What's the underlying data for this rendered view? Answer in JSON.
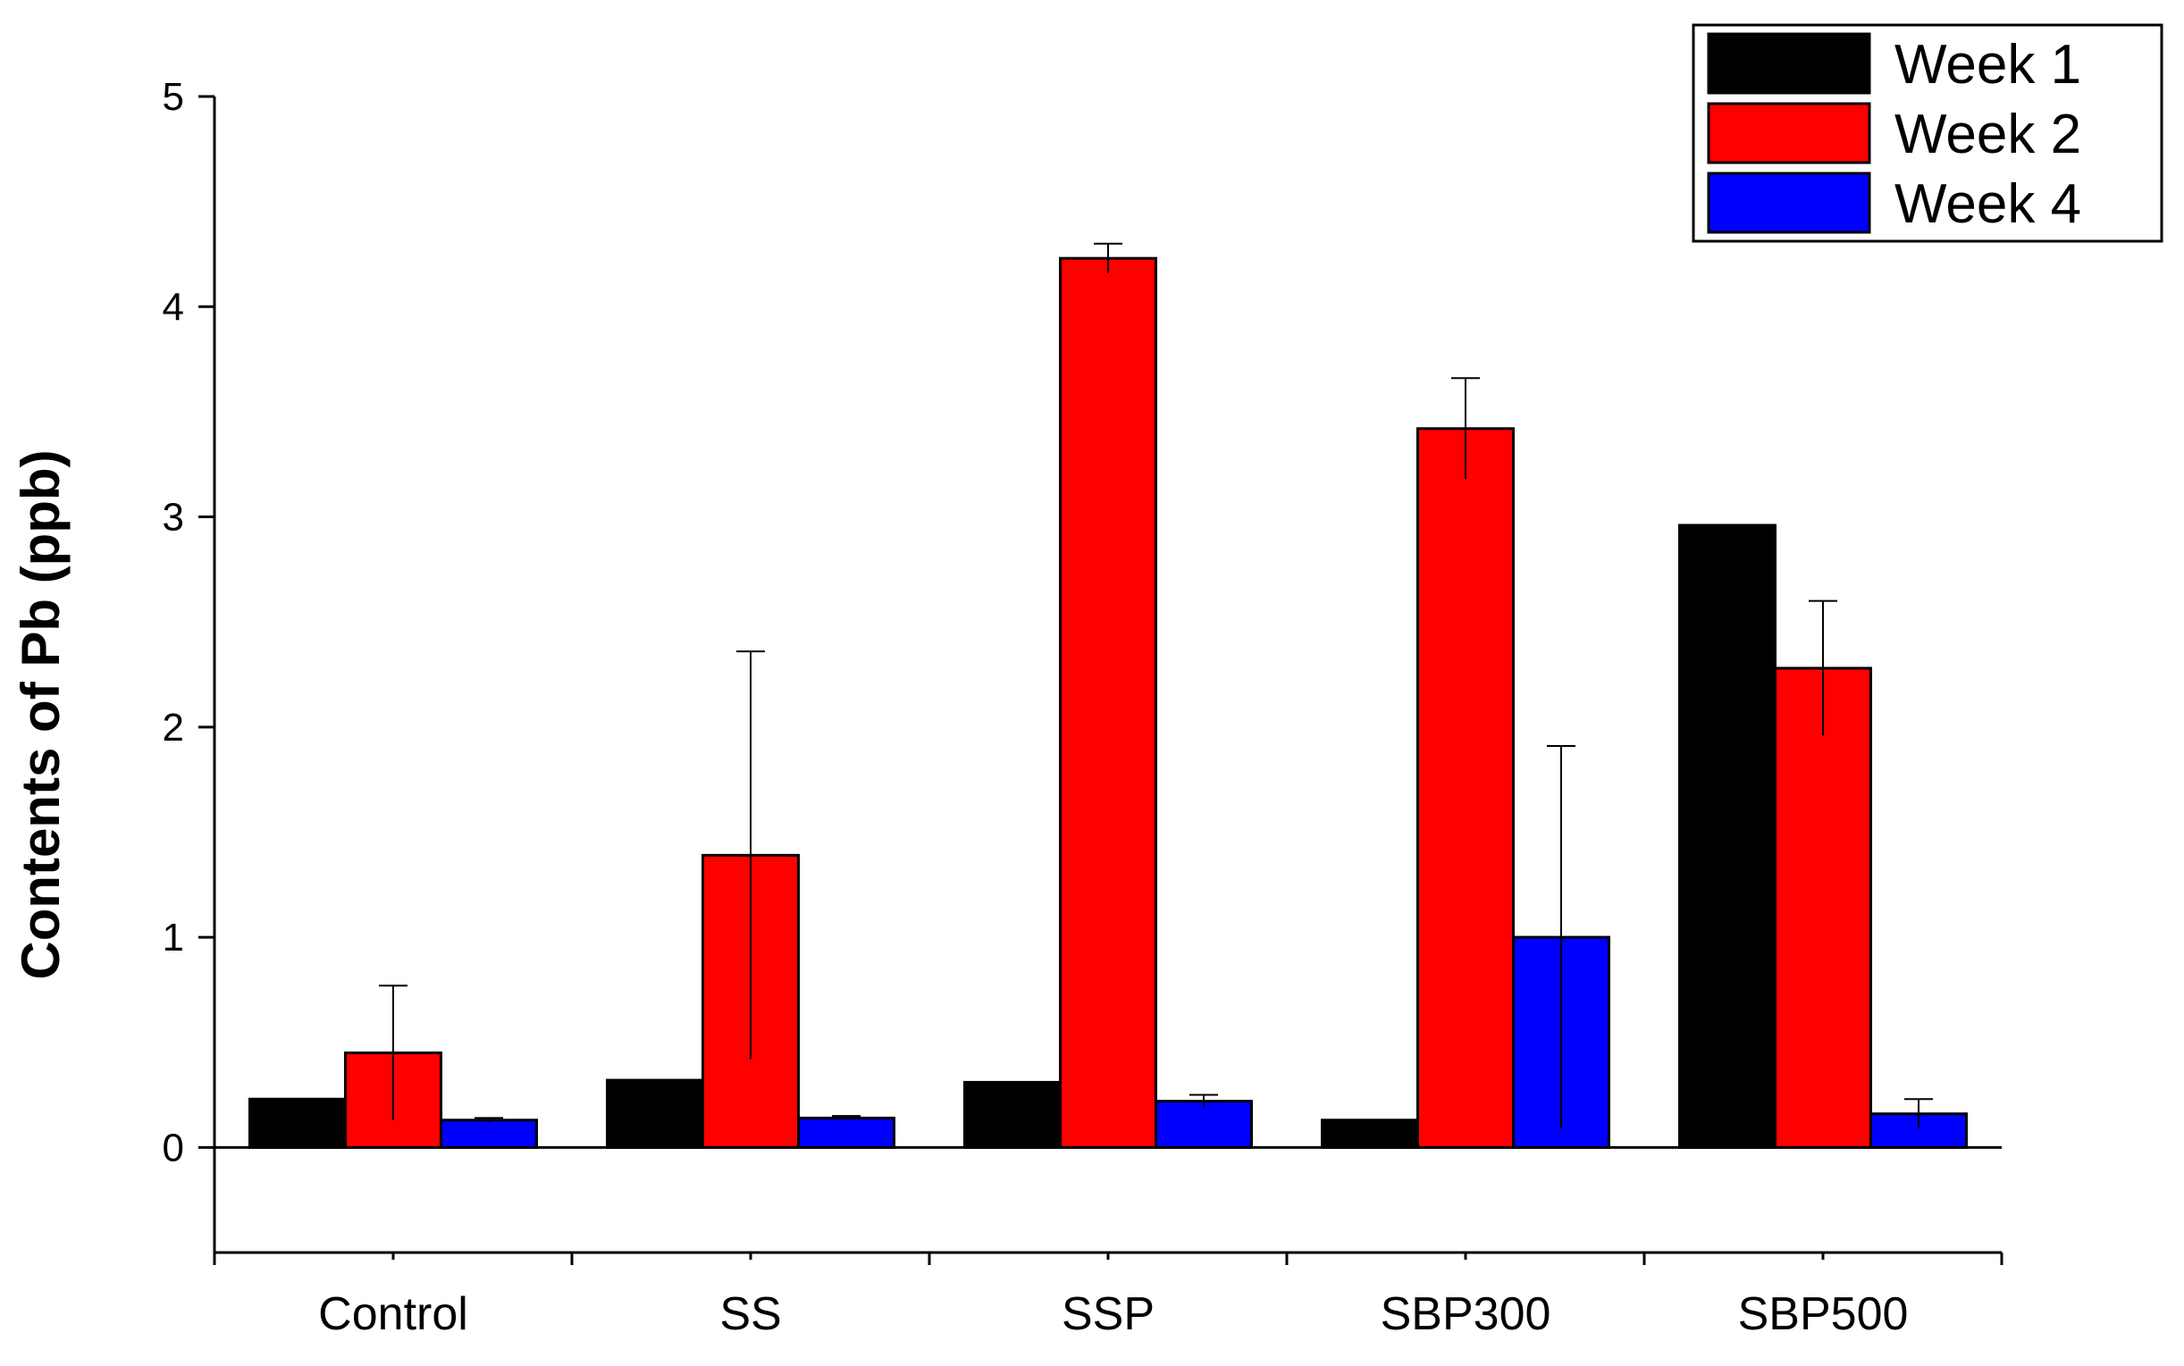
{
  "chart_data": {
    "type": "bar",
    "title": "",
    "xlabel": "",
    "ylabel": "Contents of Pb (ppb)",
    "ylim": [
      -0.5,
      5
    ],
    "yticks": [
      0,
      1,
      2,
      3,
      4,
      5
    ],
    "ytick_labels": [
      "0",
      "1",
      "2",
      "3",
      "4",
      "5"
    ],
    "categories": [
      "Control",
      "SS",
      "SSP",
      "SBP300",
      "SBP500"
    ],
    "series": [
      {
        "name": "Week 1",
        "color": "#000000",
        "values": [
          0.23,
          0.32,
          0.31,
          0.13,
          2.96
        ],
        "errors": [
          0,
          0,
          0,
          0,
          0
        ]
      },
      {
        "name": "Week 2",
        "color": "#ff0000",
        "values": [
          0.45,
          1.39,
          4.23,
          3.42,
          2.28
        ],
        "errors": [
          0.32,
          0.97,
          0.07,
          0.24,
          0.32
        ]
      },
      {
        "name": "Week 4",
        "color": "#0000ff",
        "values": [
          0.13,
          0.14,
          0.22,
          1.0,
          0.16
        ],
        "errors": [
          0.01,
          0.01,
          0.03,
          0.91,
          0.07
        ]
      }
    ],
    "grid": false,
    "legend_position": "top-right"
  }
}
